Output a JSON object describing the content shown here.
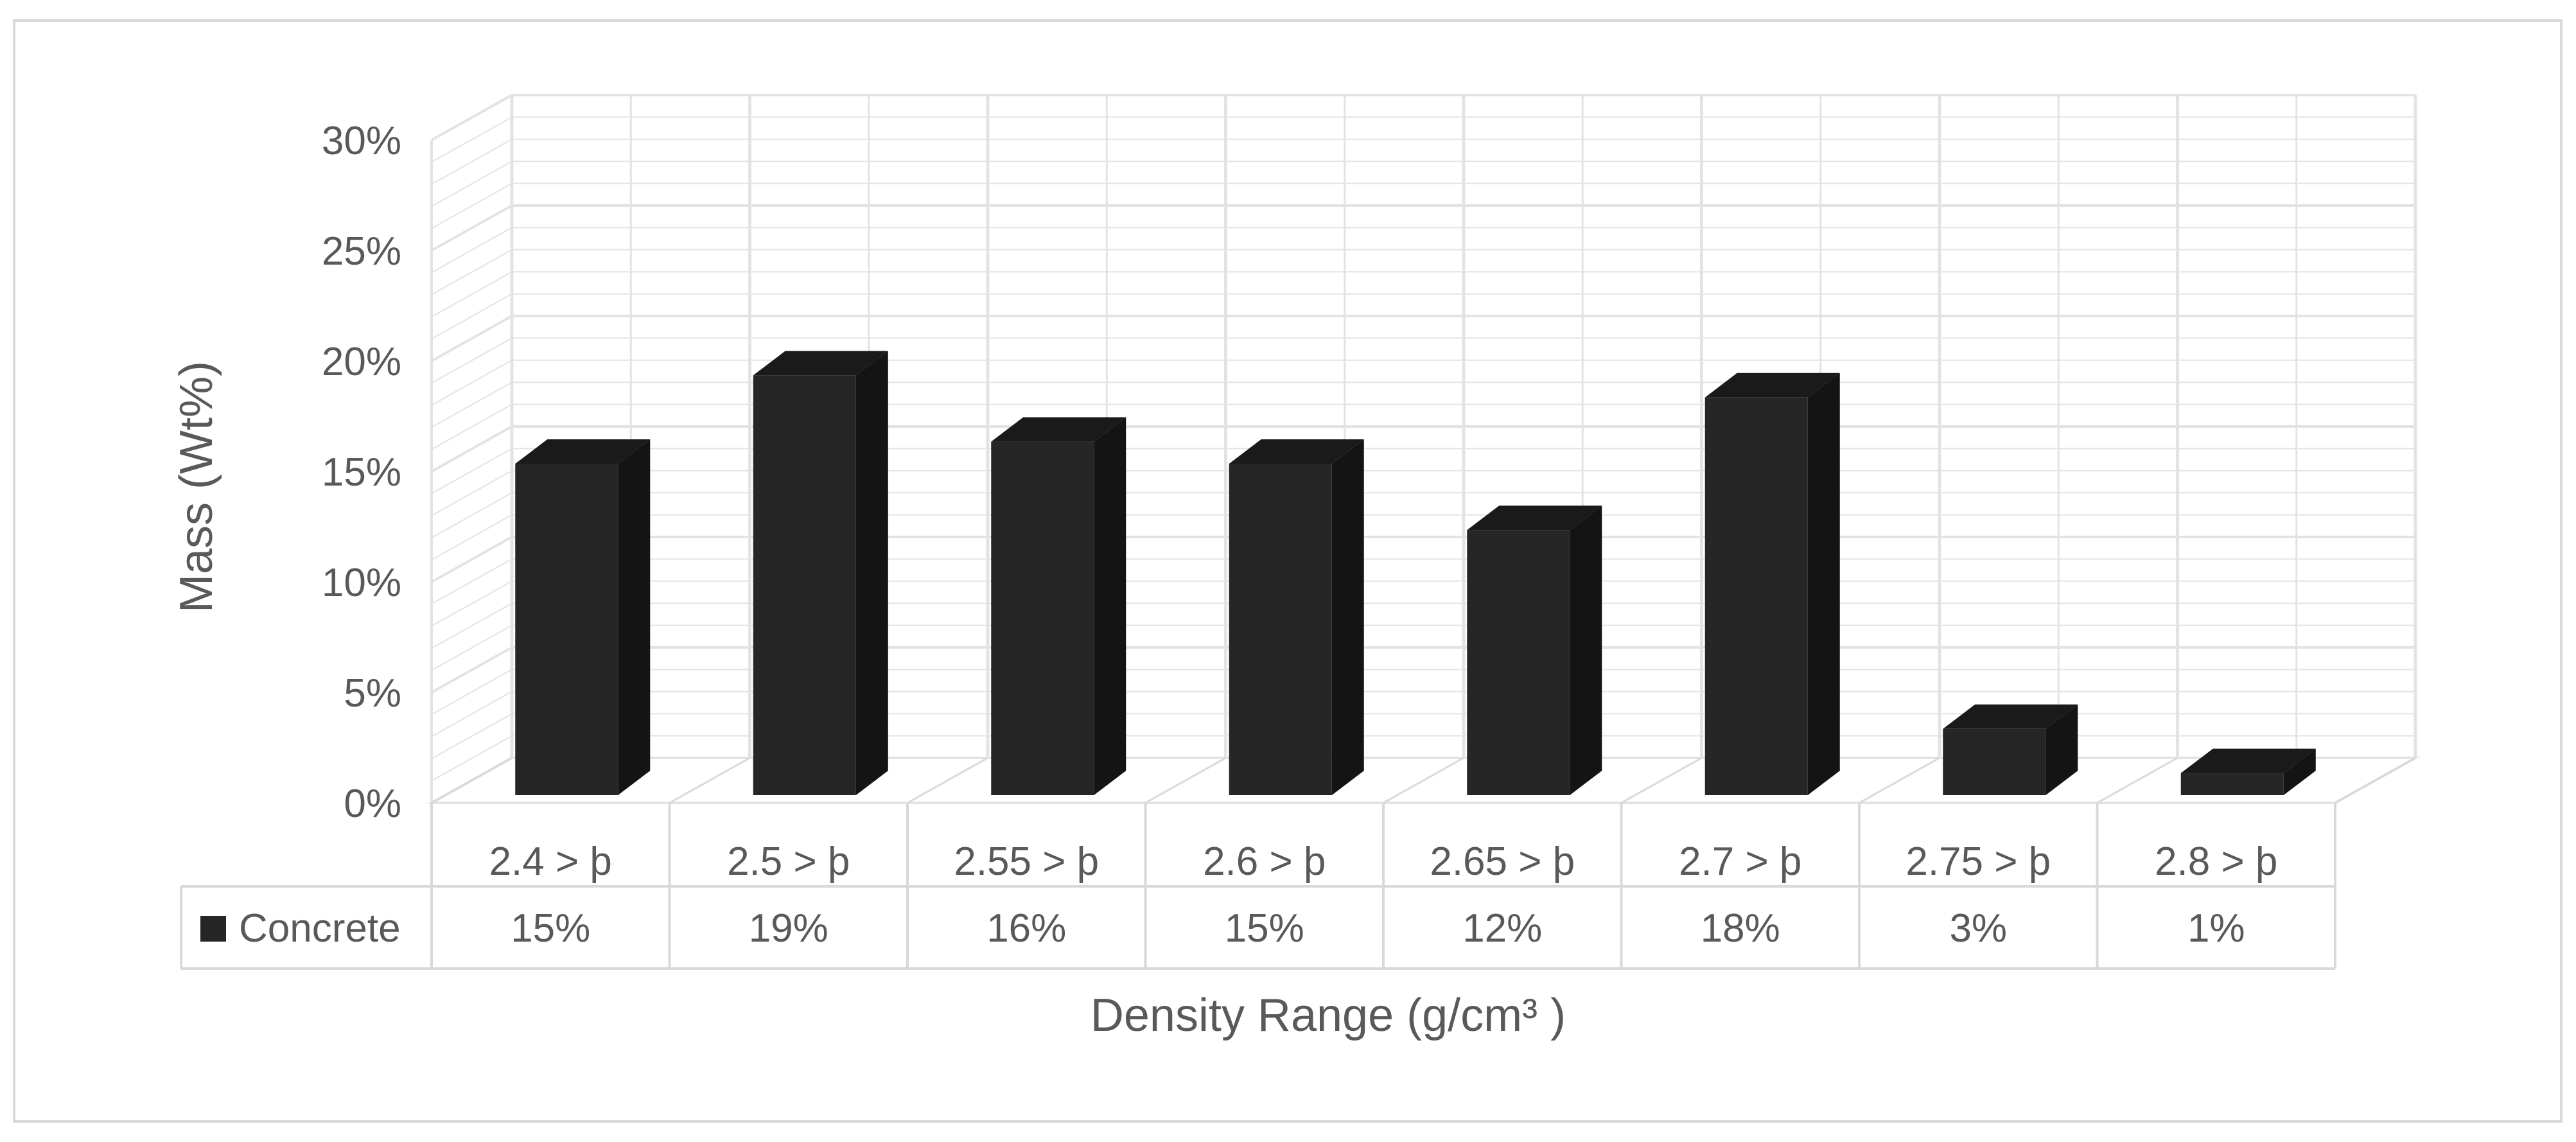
{
  "chart_data": {
    "type": "bar",
    "title": "",
    "xlabel": "Density Range (g/cm³ )",
    "ylabel": "Mass (Wt%)",
    "categories": [
      "2.4 > þ",
      "2.5 > þ",
      "2.55 > þ",
      "2.6 > þ",
      "2.65 > þ",
      "2.7 > þ",
      "2.75 > þ",
      "2.8 > þ"
    ],
    "series": [
      {
        "name": "Concrete",
        "values": [
          15,
          19,
          16,
          15,
          12,
          18,
          3,
          1
        ],
        "value_labels": [
          "15%",
          "19%",
          "16%",
          "15%",
          "12%",
          "18%",
          "3%",
          "1%"
        ],
        "color": "#262626"
      }
    ],
    "y_ticks": [
      "0%",
      "5%",
      "10%",
      "15%",
      "20%",
      "25%",
      "30%"
    ],
    "y_tick_values": [
      0,
      5,
      10,
      15,
      20,
      25,
      30
    ],
    "ylim": [
      0,
      30
    ],
    "grid": true,
    "legend_placement": "data-table",
    "three_d": true,
    "colors": {
      "bar": "#262626",
      "bar_top": "#1a1a1a",
      "bar_side": "#141414",
      "grid": "#e3e3e3",
      "text": "#595959",
      "frame": "#d9d9d9"
    }
  }
}
